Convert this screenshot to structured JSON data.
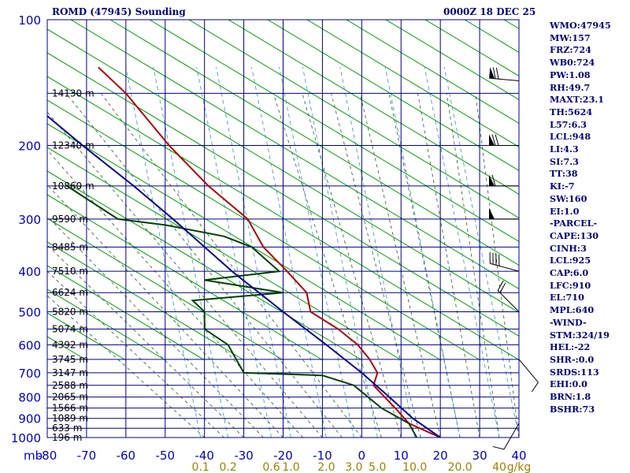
{
  "header": {
    "title_left": "ROMD (47945) Sounding",
    "title_right": "0000Z 18 DEC 25"
  },
  "indices": [
    "WMO:47945",
    "MW:157",
    "FRZ:724",
    "WB0:724",
    "PW:1.08",
    "RH:49.7",
    "MAXT:23.1",
    "TH:5624",
    "L57:6.3",
    "LCL:948",
    "LI:4.3",
    "SI:7.3",
    "TT:38",
    "KI:-7",
    "SW:160",
    "EI:1.0",
    "-PARCEL-",
    "CAPE:130",
    "CINH:3",
    "LCL:925",
    "CAP:6.0",
    "LFC:910",
    "EL:710",
    "MPL:640",
    "-WIND-",
    "STM:324/19",
    "HEL:-22",
    "SHR-:0.0",
    "SRDS:113",
    "EHI:0.0",
    "BRN:1.8",
    "BSHR:73"
  ],
  "chart_data": {
    "type": "line",
    "title": "ROMD (47945) Sounding",
    "subtitle": "0000Z 18 DEC 25",
    "x_axis": {
      "unit_label": "mb",
      "range": [
        -80,
        40
      ],
      "ticks": [
        "-80",
        "-70",
        "-60",
        "-50",
        "-40",
        "-30",
        "-20",
        "-10",
        "0",
        "10",
        "20",
        "30",
        "40"
      ]
    },
    "y_axis": {
      "scale": "log",
      "range": [
        1000,
        100
      ],
      "ticks": [
        "100",
        "200",
        "300",
        "400",
        "500",
        "600",
        "700",
        "800",
        "900",
        "1000"
      ]
    },
    "mixing_ratio_labels": [
      {
        "label": "0.1",
        "temp": -41
      },
      {
        "label": "0.2",
        "temp": -34
      },
      {
        "label": "0.6",
        "temp": -23
      },
      {
        "label": "1.0",
        "temp": -18
      },
      {
        "label": "2.0",
        "temp": -9
      },
      {
        "label": "3.0",
        "temp": -2
      },
      {
        "label": "5.0",
        "temp": 4
      },
      {
        "label": "10.0",
        "temp": 13.5
      },
      {
        "label": "20.0",
        "temp": 25
      },
      {
        "label": "40",
        "temp": 35
      },
      {
        "label": "g/kg",
        "temp": 40
      }
    ],
    "height_labels": [
      {
        "p": 150,
        "text": "14130 m"
      },
      {
        "p": 200,
        "text": "12340 m"
      },
      {
        "p": 250,
        "text": "10860 m"
      },
      {
        "p": 300,
        "text": "9590 m"
      },
      {
        "p": 350,
        "text": "8485 m"
      },
      {
        "p": 400,
        "text": "7510 m"
      },
      {
        "p": 450,
        "text": "6624 m"
      },
      {
        "p": 500,
        "text": "5820 m"
      },
      {
        "p": 550,
        "text": "5074 m"
      },
      {
        "p": 600,
        "text": "4392 m"
      },
      {
        "p": 650,
        "text": "3745 m"
      },
      {
        "p": 700,
        "text": "3147 m"
      },
      {
        "p": 750,
        "text": "2588 m"
      },
      {
        "p": 800,
        "text": "2065 m"
      },
      {
        "p": 850,
        "text": "1566 m"
      },
      {
        "p": 900,
        "text": "1089 m"
      },
      {
        "p": 950,
        "text": "633 m"
      },
      {
        "p": 1000,
        "text": "196 m"
      }
    ],
    "series": [
      {
        "name": "temperature",
        "color": "#b00000",
        "points": [
          [
            1000,
            20
          ],
          [
            925,
            12
          ],
          [
            850,
            8.5
          ],
          [
            750,
            3
          ],
          [
            700,
            4
          ],
          [
            650,
            2
          ],
          [
            600,
            -1
          ],
          [
            550,
            -6
          ],
          [
            500,
            -13
          ],
          [
            450,
            -14
          ],
          [
            400,
            -19
          ],
          [
            350,
            -25
          ],
          [
            300,
            -29
          ],
          [
            250,
            -39
          ],
          [
            200,
            -49
          ],
          [
            150,
            -60
          ],
          [
            130,
            -67
          ]
        ]
      },
      {
        "name": "dewpoint",
        "color": "#004000",
        "points": [
          [
            1000,
            14
          ],
          [
            925,
            12
          ],
          [
            850,
            5
          ],
          [
            750,
            -2
          ],
          [
            710,
            -10
          ],
          [
            700,
            -30
          ],
          [
            600,
            -34
          ],
          [
            550,
            -40
          ],
          [
            500,
            -40
          ],
          [
            470,
            -43
          ],
          [
            450,
            -20
          ],
          [
            420,
            -40
          ],
          [
            400,
            -21
          ],
          [
            350,
            -28
          ],
          [
            330,
            -35
          ],
          [
            310,
            -50
          ],
          [
            300,
            -62
          ],
          [
            250,
            -75
          ]
        ]
      },
      {
        "name": "parcel",
        "color": "#000090",
        "points": [
          [
            1000,
            20
          ],
          [
            900,
            13
          ],
          [
            800,
            7
          ],
          [
            700,
            0
          ],
          [
            600,
            -9
          ],
          [
            500,
            -20
          ],
          [
            400,
            -33
          ],
          [
            300,
            -48
          ],
          [
            250,
            -58
          ],
          [
            200,
            -71
          ],
          [
            170,
            -80
          ]
        ]
      }
    ],
    "wind_barbs": [
      {
        "p": 140,
        "dir": 275,
        "kt": 75
      },
      {
        "p": 200,
        "dir": 270,
        "kt": 70
      },
      {
        "p": 250,
        "dir": 270,
        "kt": 60
      },
      {
        "p": 300,
        "dir": 270,
        "kt": 55
      },
      {
        "p": 400,
        "dir": 285,
        "kt": 45
      },
      {
        "p": 500,
        "dir": 315,
        "kt": 25
      },
      {
        "p": 650,
        "dir": 140,
        "kt": 10
      },
      {
        "p": 925,
        "dir": 210,
        "kt": 10
      }
    ]
  }
}
